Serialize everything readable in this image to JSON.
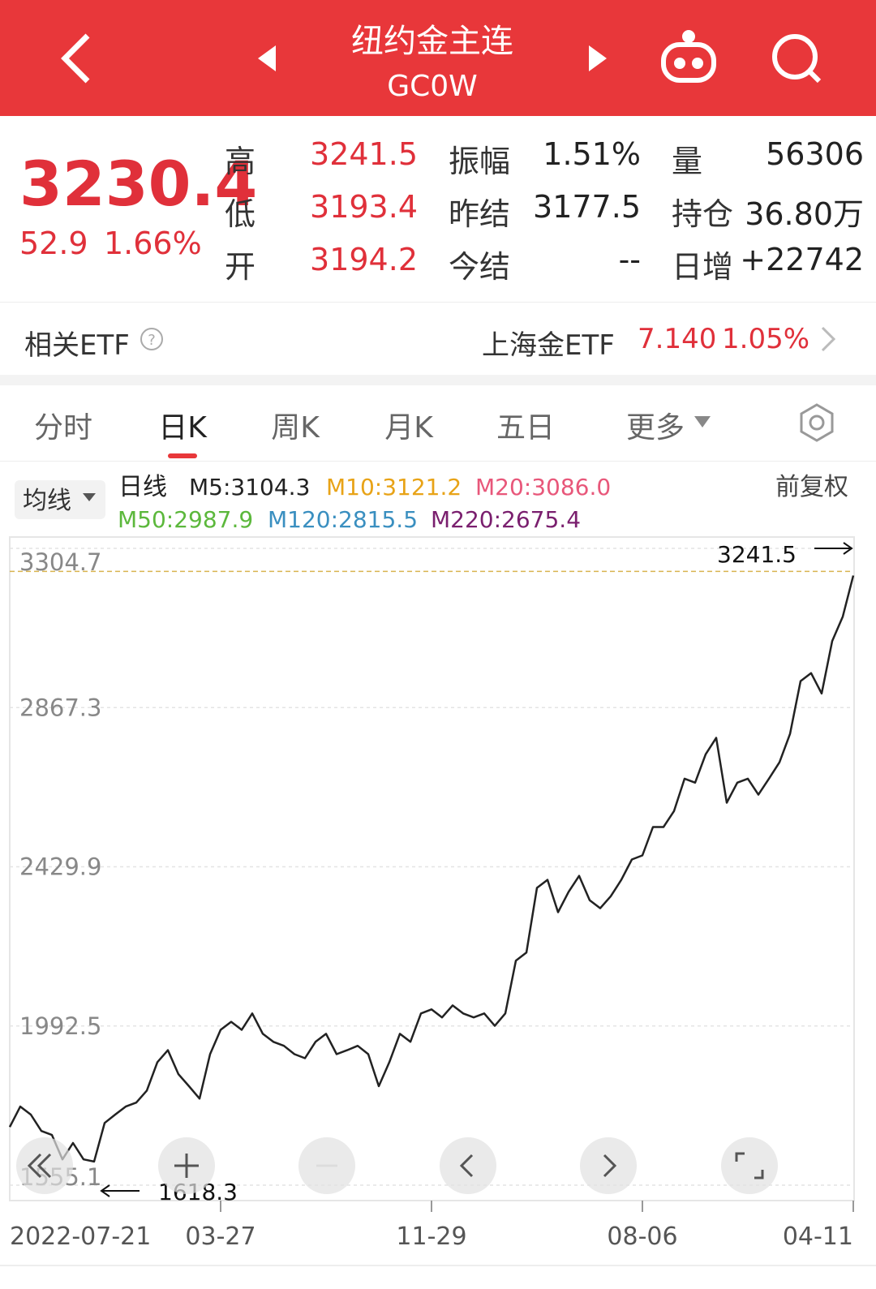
{
  "header": {
    "title": "纽约金主连",
    "code": "GC0W"
  },
  "quote": {
    "price": "3230.4",
    "change": "52.9",
    "change_pct": "1.66%",
    "stats": [
      [
        "高",
        "3241.5",
        "振幅",
        "1.51%",
        "量",
        "56306"
      ],
      [
        "低",
        "3193.4",
        "昨结",
        "3177.5",
        "持仓",
        "36.80万"
      ],
      [
        "开",
        "3194.2",
        "今结",
        "--",
        "日增",
        "+22742"
      ]
    ]
  },
  "etf": {
    "label": "相关ETF",
    "name": "上海金ETF",
    "price": "7.140",
    "change_pct": "1.05%"
  },
  "tabs": [
    "分时",
    "日K",
    "周K",
    "月K",
    "五日",
    "更多"
  ],
  "chart_data": {
    "type": "line",
    "ma_button": "均线",
    "mode_label": "日线",
    "adjust_label": "前复权",
    "indicators": [
      {
        "name": "M5:3104.3",
        "color": "#222222"
      },
      {
        "name": "M10:3121.2",
        "color": "#e8a317"
      },
      {
        "name": "M20:3086.0",
        "color": "#e8577a"
      },
      {
        "name": "M50:2987.9",
        "color": "#5cb83c"
      },
      {
        "name": "M120:2815.5",
        "color": "#3a8fc0"
      },
      {
        "name": "M220:2675.4",
        "color": "#7a1f6e"
      }
    ],
    "categories": [
      "2022-07-21",
      null,
      null,
      null,
      null,
      null,
      null,
      null,
      null,
      null,
      null,
      null,
      null,
      null,
      null,
      null,
      null,
      null,
      null,
      null,
      "03-27",
      null,
      null,
      null,
      null,
      null,
      null,
      null,
      null,
      null,
      null,
      null,
      null,
      null,
      null,
      null,
      null,
      null,
      null,
      null,
      "11-29",
      null,
      null,
      null,
      null,
      null,
      null,
      null,
      null,
      null,
      null,
      null,
      null,
      null,
      null,
      null,
      null,
      null,
      null,
      null,
      "08-06",
      null,
      null,
      null,
      null,
      null,
      null,
      null,
      null,
      null,
      null,
      null,
      null,
      null,
      null,
      null,
      null,
      null,
      null,
      null,
      "04-11"
    ],
    "values": [
      1715,
      1771,
      1749,
      1704,
      1693,
      1626,
      1671,
      1626,
      1620,
      1726,
      1749,
      1771,
      1782,
      1815,
      1893,
      1926,
      1860,
      1827,
      1793,
      1915,
      1982,
      2004,
      1982,
      2027,
      1971,
      1949,
      1938,
      1915,
      1904,
      1949,
      1971,
      1915,
      1926,
      1938,
      1915,
      1827,
      1893,
      1971,
      1949,
      2027,
      2038,
      2016,
      2049,
      2027,
      2016,
      2027,
      1993,
      2027,
      2172,
      2194,
      2372,
      2394,
      2305,
      2361,
      2405,
      2338,
      2316,
      2349,
      2394,
      2450,
      2461,
      2539,
      2539,
      2583,
      2672,
      2661,
      2739,
      2784,
      2606,
      2661,
      2672,
      2628,
      2672,
      2717,
      2795,
      2940,
      2962,
      2906,
      3050,
      3117,
      3230
    ],
    "color": "#222222",
    "ylim": [
      1555.1,
      3304.7
    ],
    "yticks": [
      3304.7,
      2867.3,
      2429.9,
      1992.5,
      1555.1
    ],
    "grid": true,
    "high_label": 3241.5,
    "low_label": 1618.3
  }
}
